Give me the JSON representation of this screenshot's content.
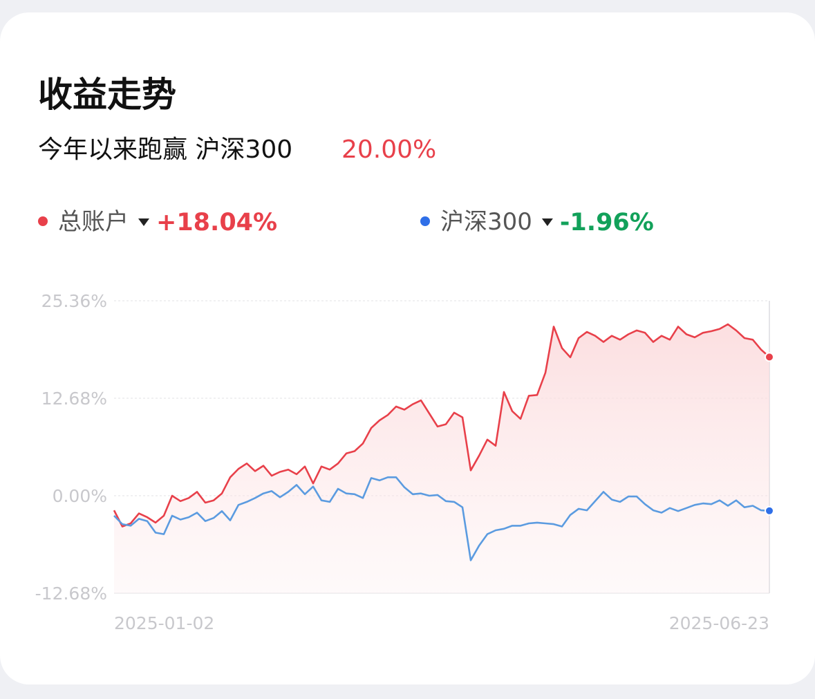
{
  "header": {
    "title": "收益走势",
    "subtitle": "今年以来跑赢 沪深300",
    "subtitle_value": "20.00%"
  },
  "chart_data": {
    "type": "line",
    "categories": [
      "2025-01-02",
      null,
      null,
      null,
      null,
      null,
      null,
      null,
      null,
      null,
      null,
      null,
      null,
      null,
      null,
      null,
      null,
      null,
      null,
      null,
      null,
      null,
      null,
      null,
      null,
      null,
      null,
      null,
      null,
      null,
      null,
      null,
      null,
      null,
      null,
      null,
      null,
      null,
      null,
      null,
      null,
      null,
      null,
      null,
      null,
      null,
      null,
      null,
      null,
      null,
      null,
      null,
      null,
      null,
      null,
      null,
      null,
      null,
      null,
      null,
      null,
      null,
      null,
      null,
      null,
      null,
      null,
      null,
      null,
      null,
      null,
      null,
      null,
      null,
      null,
      null,
      null,
      null,
      null,
      "2025-06-23"
    ],
    "series": [
      {
        "name": "总账户",
        "color": "#e8404a",
        "legend_value": "+18.04%",
        "fill": true,
        "values": [
          -1.9,
          -4.0,
          -3.6,
          -2.3,
          -2.8,
          -3.5,
          -2.6,
          0.0,
          -0.7,
          -0.3,
          0.5,
          -0.9,
          -0.6,
          0.3,
          2.4,
          3.5,
          4.2,
          3.2,
          3.9,
          2.6,
          3.1,
          3.4,
          2.8,
          3.8,
          1.6,
          3.8,
          3.4,
          4.2,
          5.5,
          5.8,
          6.8,
          8.8,
          9.8,
          10.5,
          11.6,
          11.2,
          11.9,
          12.4,
          10.7,
          9.0,
          9.3,
          10.8,
          10.2,
          3.3,
          5.2,
          7.3,
          6.5,
          13.5,
          11.0,
          10.0,
          13.0,
          13.1,
          16.0,
          22.0,
          19.2,
          18.0,
          20.5,
          21.3,
          20.8,
          20.0,
          20.8,
          20.3,
          21.0,
          21.5,
          21.2,
          20.0,
          20.8,
          20.3,
          22.0,
          21.0,
          20.6,
          21.2,
          21.4,
          21.7,
          22.3,
          21.5,
          20.5,
          20.3,
          19.0,
          18.04
        ]
      },
      {
        "name": "沪深300",
        "color": "#5b9be0",
        "legend_color": "#2f6fe8",
        "legend_value": "-1.96%",
        "legend_value_color": "#12a15a",
        "fill": false,
        "values": [
          -2.6,
          -3.7,
          -3.9,
          -3.0,
          -3.3,
          -4.8,
          -5.0,
          -2.6,
          -3.1,
          -2.8,
          -2.2,
          -3.3,
          -2.9,
          -2.0,
          -3.2,
          -1.2,
          -0.8,
          -0.3,
          0.3,
          0.6,
          -0.2,
          0.5,
          1.4,
          0.2,
          1.2,
          -0.6,
          -0.8,
          0.9,
          0.3,
          0.2,
          -0.3,
          2.3,
          2.0,
          2.4,
          2.4,
          1.1,
          0.2,
          0.3,
          0.0,
          0.1,
          -0.7,
          -0.8,
          -1.5,
          -8.4,
          -6.5,
          -5.0,
          -4.5,
          -4.3,
          -3.9,
          -3.9,
          -3.6,
          -3.5,
          -3.6,
          -3.7,
          -4.0,
          -2.5,
          -1.7,
          -1.9,
          -0.7,
          0.5,
          -0.5,
          -0.8,
          -0.1,
          -0.1,
          -1.1,
          -1.9,
          -2.2,
          -1.6,
          -2.0,
          -1.6,
          -1.2,
          -1.0,
          -1.1,
          -0.6,
          -1.3,
          -0.6,
          -1.5,
          -1.3,
          -1.9,
          -1.96
        ]
      }
    ],
    "ylim": [
      -12.68,
      25.36
    ],
    "yticks": [
      {
        "value": -12.68,
        "label": "-12.68%"
      },
      {
        "value": 0,
        "label": "0.00%"
      },
      {
        "value": 12.68,
        "label": "12.68%"
      },
      {
        "value": 25.36,
        "label": "25.36%"
      }
    ],
    "grid": true
  }
}
